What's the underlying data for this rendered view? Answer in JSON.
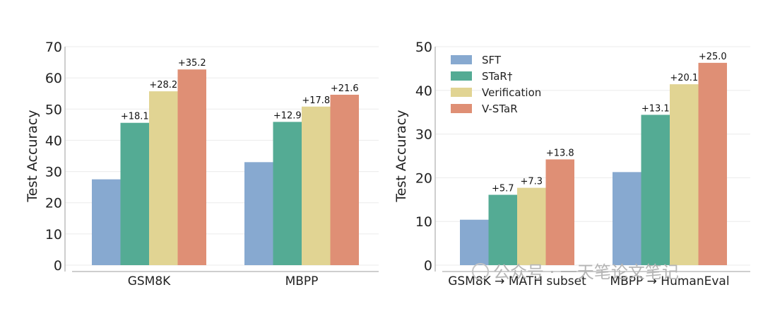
{
  "chart_data": [
    {
      "type": "bar",
      "ylabel": "Test Accuracy",
      "ylim": [
        0,
        70
      ],
      "yticks": [
        0,
        10,
        20,
        30,
        40,
        50,
        60,
        70
      ],
      "grid": true,
      "categories": [
        "GSM8K",
        "MBPP"
      ],
      "series": [
        {
          "name": "SFT",
          "values": [
            27.5,
            33.0
          ],
          "labels": [
            "",
            ""
          ]
        },
        {
          "name": "STaR†",
          "values": [
            45.6,
            45.9
          ],
          "labels": [
            "+18.1",
            "+12.9"
          ]
        },
        {
          "name": "Verification",
          "values": [
            55.7,
            50.8
          ],
          "labels": [
            "+28.2",
            "+17.8"
          ]
        },
        {
          "name": "V-STaR",
          "values": [
            62.7,
            54.6
          ],
          "labels": [
            "+35.2",
            "+21.6"
          ]
        }
      ]
    },
    {
      "type": "bar",
      "ylabel": "Test Accuracy",
      "ylim": [
        0,
        50
      ],
      "yticks": [
        0,
        10,
        20,
        30,
        40,
        50
      ],
      "grid": true,
      "legend": "top-left",
      "categories": [
        "GSM8K → MATH subset",
        "MBPP → HumanEval"
      ],
      "series": [
        {
          "name": "SFT",
          "values": [
            10.4,
            21.3
          ],
          "labels": [
            "",
            ""
          ]
        },
        {
          "name": "STaR†",
          "values": [
            16.1,
            34.4
          ],
          "labels": [
            "+5.7",
            "+13.1"
          ]
        },
        {
          "name": "Verification",
          "values": [
            17.7,
            41.4
          ],
          "labels": [
            "+7.3",
            "+20.1"
          ]
        },
        {
          "name": "V-STaR",
          "values": [
            24.2,
            46.3
          ],
          "labels": [
            "+13.8",
            "+25.0"
          ]
        }
      ]
    }
  ],
  "colors": [
    "#87a9d0",
    "#54ab94",
    "#e1d493",
    "#df8f75"
  ],
  "watermark": "公众号 · 一天笔论文笔记"
}
